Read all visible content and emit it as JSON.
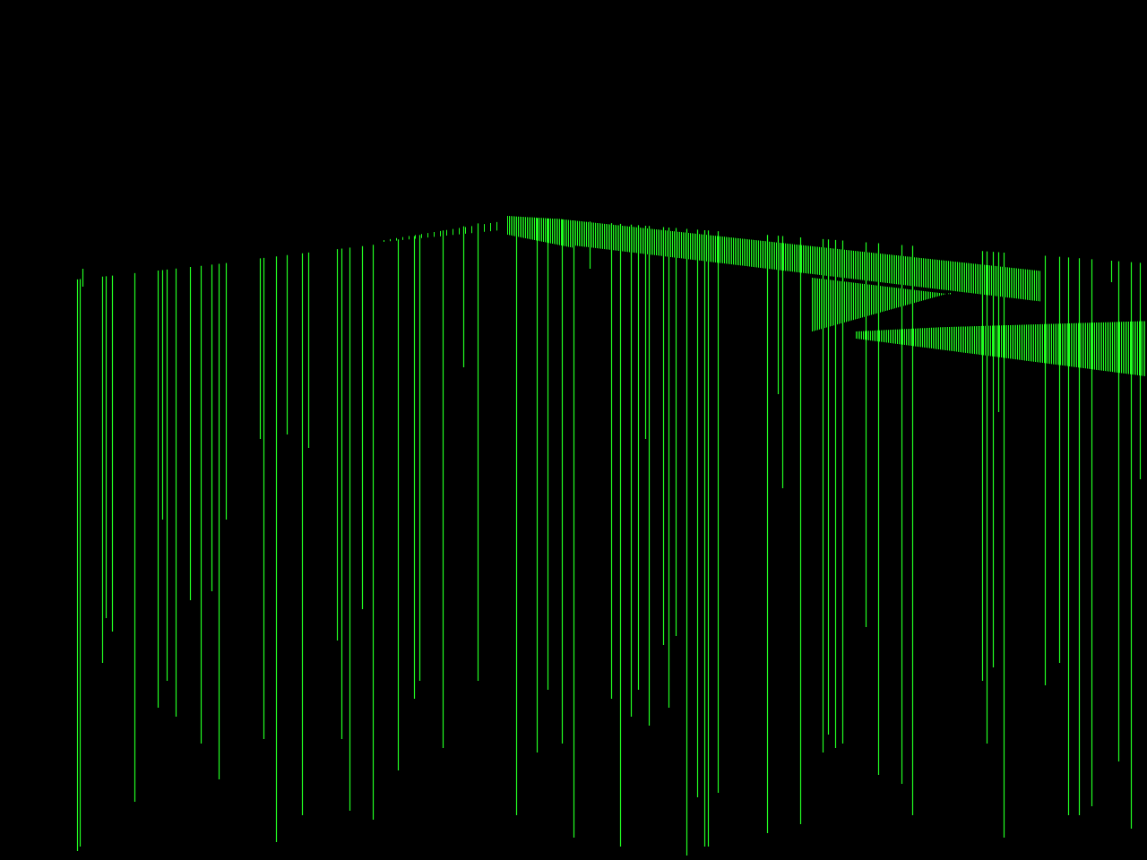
{
  "screen": {
    "background_color": "#000000",
    "line_color": "#22ff22",
    "render_style": "vertical green scanline columns, no visible text or HUD"
  }
}
